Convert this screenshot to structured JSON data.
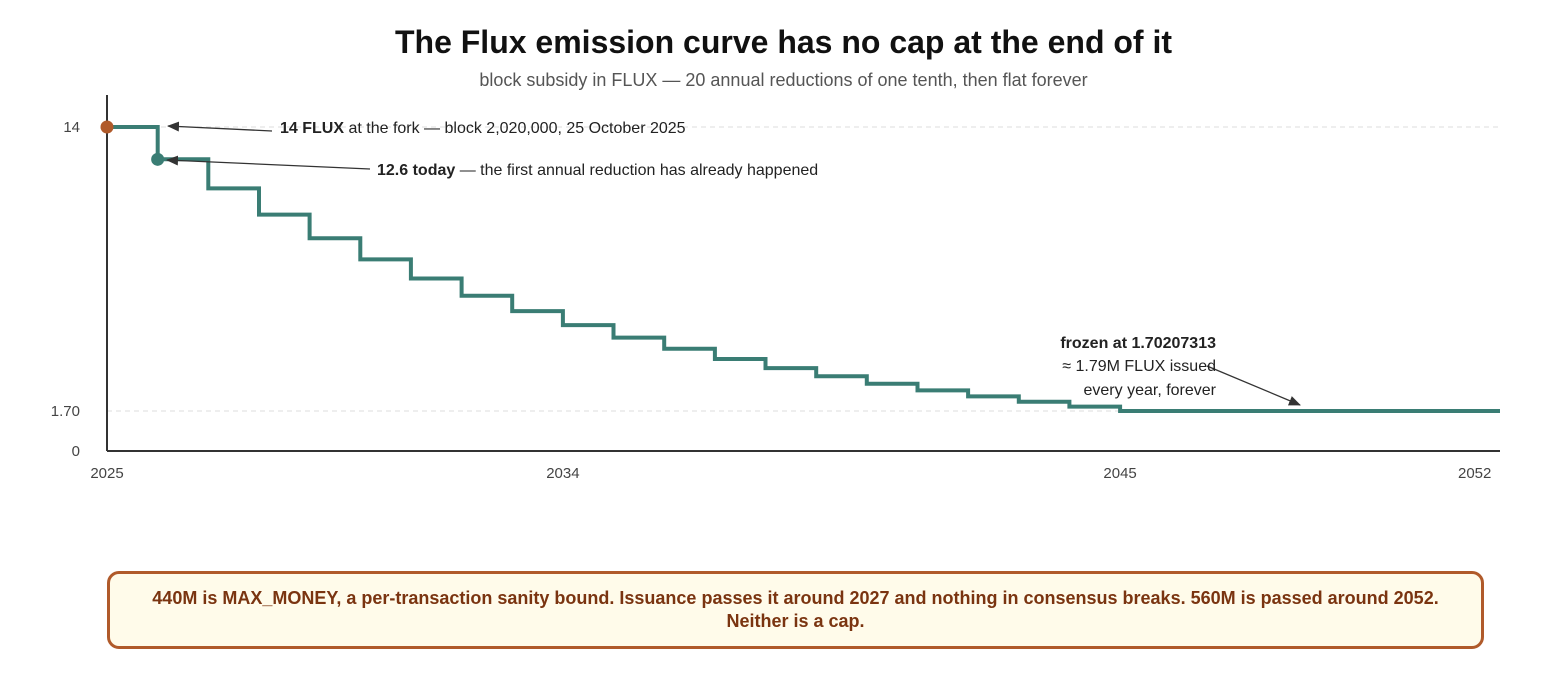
{
  "chart_data": {
    "type": "line",
    "step": true,
    "title": "The Flux emission curve has no cap at the end of it",
    "subtitle": "block subsidy in FLUX — 20 annual reductions of one tenth, then flat forever",
    "xlabel": "",
    "ylabel": "",
    "xlim": [
      2025,
      2052.5
    ],
    "ylim": [
      0,
      14.5
    ],
    "x_ticks": [
      "2025",
      "2034",
      "2045",
      "2052"
    ],
    "y_ticks": [
      "0",
      "1.70",
      "14"
    ],
    "grid": false,
    "reference_lines": [
      14,
      1.70207313
    ],
    "series": [
      {
        "color": "#3a7d74",
        "x": [
          2025,
          2026,
          2027,
          2028,
          2029,
          2030,
          2031,
          2032,
          2033,
          2034,
          2035,
          2036,
          2037,
          2038,
          2039,
          2040,
          2041,
          2042,
          2043,
          2044,
          2045,
          2052.5
        ],
        "values": [
          14,
          12.6,
          11.34,
          10.206,
          9.1854,
          8.26686,
          7.440174,
          6.696157,
          6.026541,
          5.423887,
          4.881498,
          4.393348,
          3.954014,
          3.558612,
          3.202751,
          2.882476,
          2.594228,
          2.334805,
          2.101325,
          1.891192,
          1.70207313,
          1.70207313
        ]
      }
    ],
    "points": [
      {
        "label": "fork",
        "x": 2025,
        "y": 14,
        "color": "#b05a2a"
      },
      {
        "label": "today",
        "x": 2026,
        "y": 12.6,
        "color": "#3a7d74"
      }
    ],
    "annotations": [
      {
        "bold": "14 FLUX",
        "rest": " at the fork — block 2,020,000, 25 October 2025"
      },
      {
        "bold": "12.6 today",
        "rest": " — the first annual reduction has already happened"
      },
      {
        "lines": [
          "frozen at 1.70207313",
          "≈ 1.79M FLUX issued",
          "every year, forever"
        ]
      }
    ]
  },
  "callout": {
    "text": "440M is MAX_MONEY, a per-transaction sanity bound. Issuance passes it around 2027 and nothing in consensus breaks. 560M is passed around 2052. Neither is a cap.",
    "border_color": "#b05a2a",
    "background": "#fffbea",
    "text_color": "#7a3410"
  }
}
